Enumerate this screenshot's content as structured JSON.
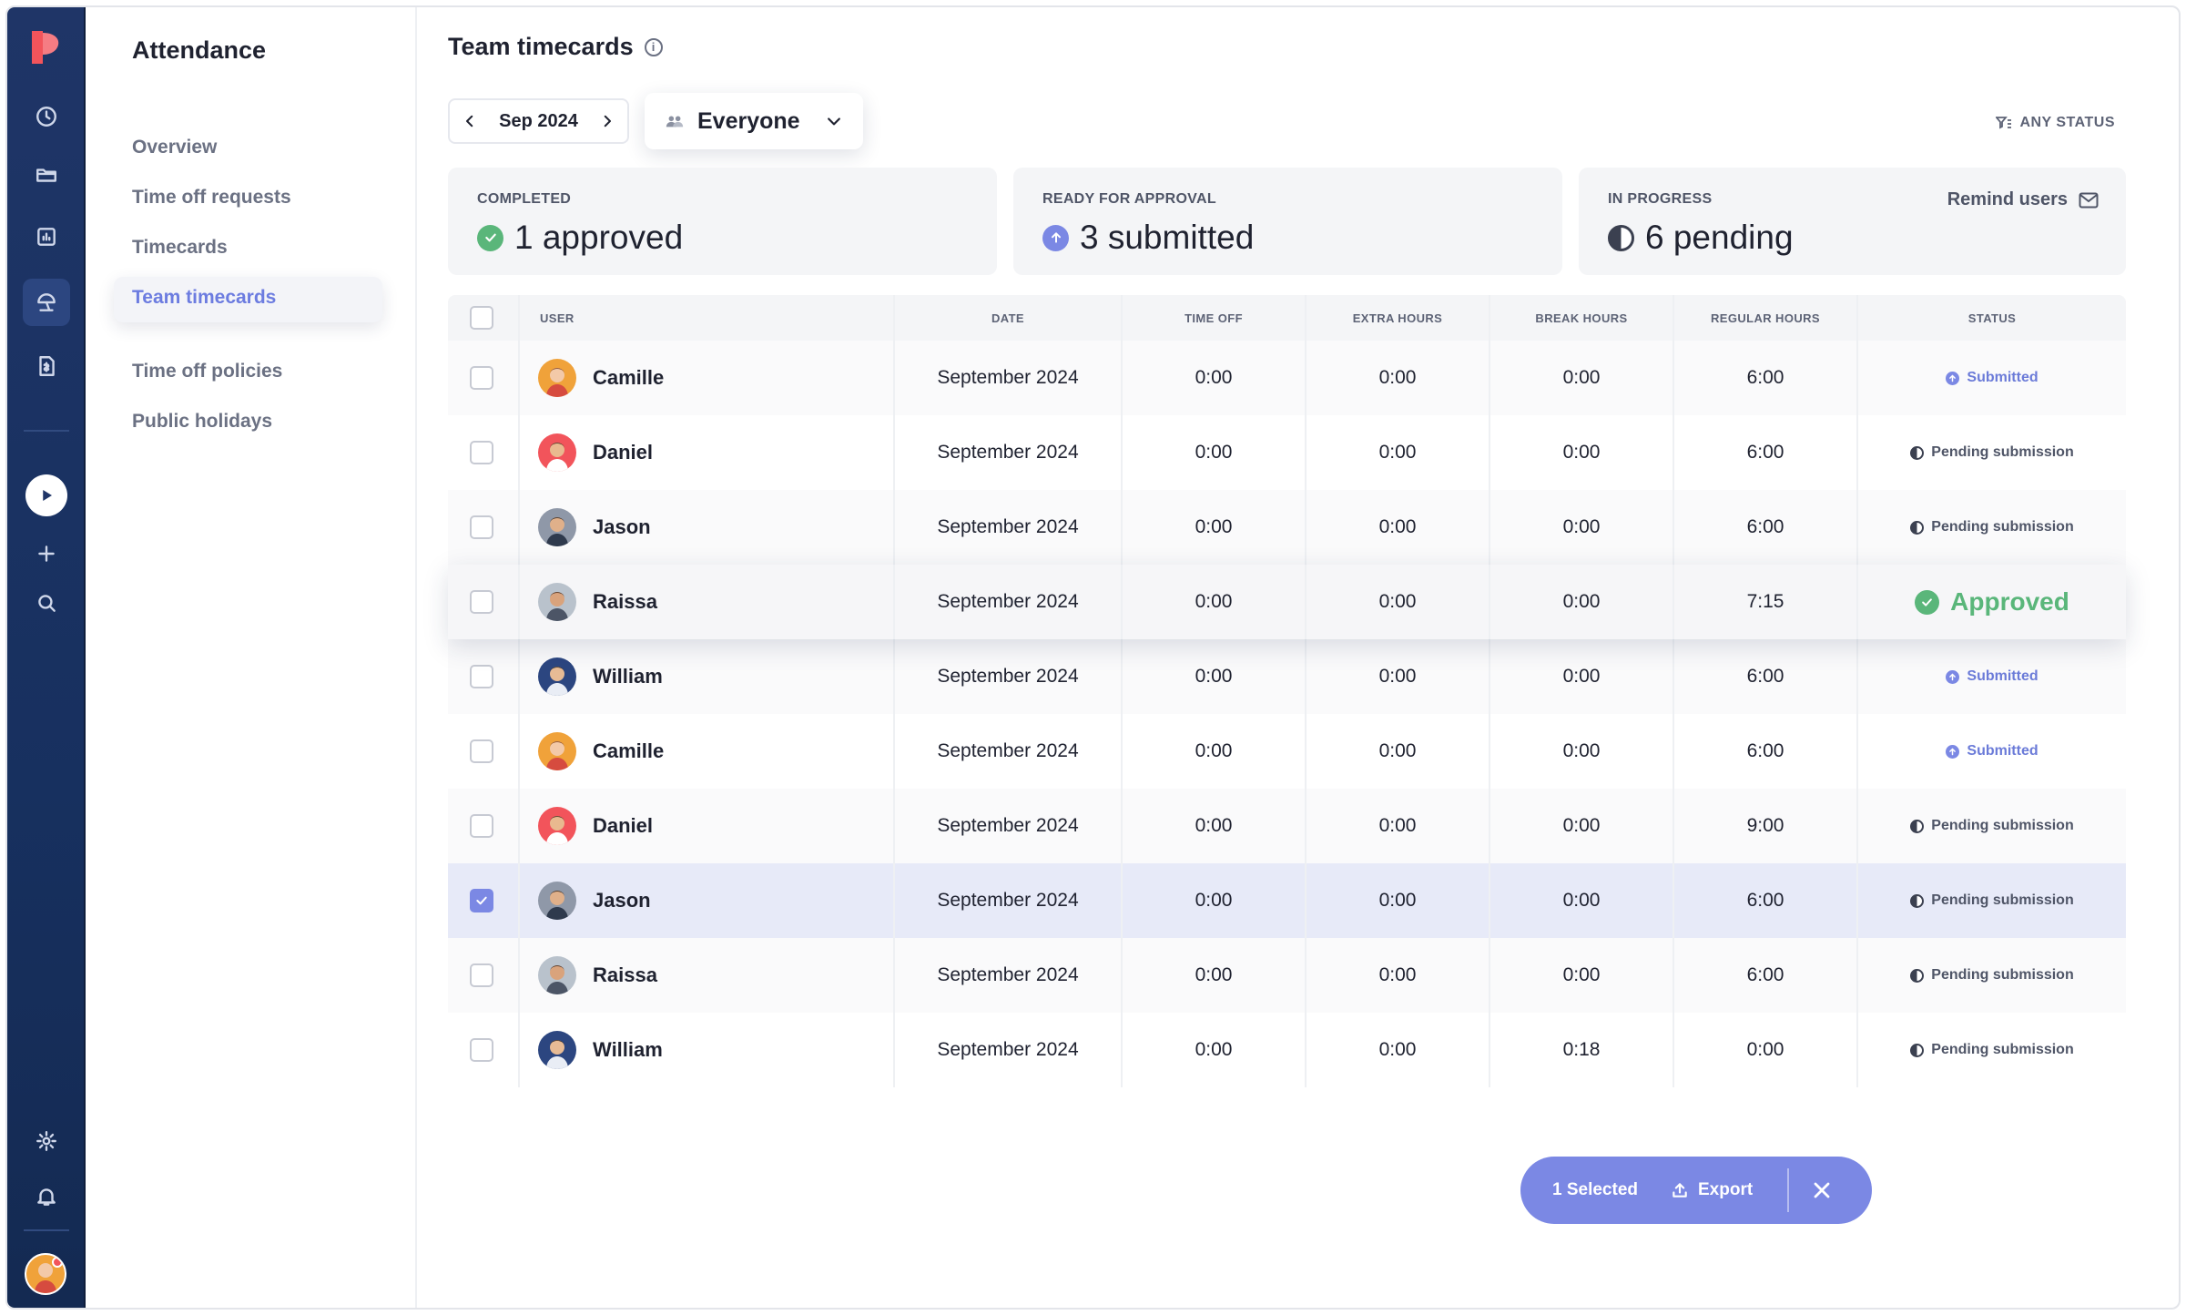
{
  "app": {
    "section_title": "Attendance",
    "nav": [
      {
        "label": "Overview"
      },
      {
        "label": "Time off requests"
      },
      {
        "label": "Timecards"
      },
      {
        "label": "Team timecards"
      },
      {
        "label": "Time off policies"
      },
      {
        "label": "Public holidays"
      }
    ],
    "rail_icons": [
      "clock-icon",
      "folder-icon",
      "chart-icon",
      "beach-umbrella-icon",
      "invoice-icon",
      "play-icon",
      "plus-icon",
      "search-icon",
      "gear-icon",
      "bell-icon"
    ]
  },
  "header": {
    "title": "Team timecards",
    "month": "Sep 2024",
    "group_filter": "Everyone",
    "status_filter": "ANY STATUS"
  },
  "summary": {
    "completed": {
      "caption": "COMPLETED",
      "value": "1 approved"
    },
    "ready": {
      "caption": "READY FOR APPROVAL",
      "value": "3 submitted"
    },
    "progress": {
      "caption": "IN PROGRESS",
      "value": "6 pending",
      "action": "Remind users"
    }
  },
  "table": {
    "columns": [
      "USER",
      "DATE",
      "TIME OFF",
      "EXTRA HOURS",
      "BREAK HOURS",
      "REGULAR HOURS",
      "STATUS"
    ],
    "rows": [
      {
        "user": "Camille",
        "date": "September 2024",
        "time_off": "0:00",
        "extra": "0:00",
        "break": "0:00",
        "regular": "6:00",
        "status": "Submitted",
        "checked": false
      },
      {
        "user": "Daniel",
        "date": "September 2024",
        "time_off": "0:00",
        "extra": "0:00",
        "break": "0:00",
        "regular": "6:00",
        "status": "Pending submission",
        "checked": false
      },
      {
        "user": "Jason",
        "date": "September 2024",
        "time_off": "0:00",
        "extra": "0:00",
        "break": "0:00",
        "regular": "6:00",
        "status": "Pending submission",
        "checked": false
      },
      {
        "user": "Raissa",
        "date": "September 2024",
        "time_off": "0:00",
        "extra": "0:00",
        "break": "0:00",
        "regular": "7:15",
        "status": "Approved",
        "checked": false
      },
      {
        "user": "William",
        "date": "September 2024",
        "time_off": "0:00",
        "extra": "0:00",
        "break": "0:00",
        "regular": "6:00",
        "status": "Submitted",
        "checked": false
      },
      {
        "user": "Camille",
        "date": "September 2024",
        "time_off": "0:00",
        "extra": "0:00",
        "break": "0:00",
        "regular": "6:00",
        "status": "Submitted",
        "checked": false
      },
      {
        "user": "Daniel",
        "date": "September 2024",
        "time_off": "0:00",
        "extra": "0:00",
        "break": "0:00",
        "regular": "9:00",
        "status": "Pending submission",
        "checked": false
      },
      {
        "user": "Jason",
        "date": "September 2024",
        "time_off": "0:00",
        "extra": "0:00",
        "break": "0:00",
        "regular": "6:00",
        "status": "Pending submission",
        "checked": true
      },
      {
        "user": "Raissa",
        "date": "September 2024",
        "time_off": "0:00",
        "extra": "0:00",
        "break": "0:00",
        "regular": "6:00",
        "status": "Pending submission",
        "checked": false
      },
      {
        "user": "William",
        "date": "September 2024",
        "time_off": "0:00",
        "extra": "0:00",
        "break": "0:18",
        "regular": "0:00",
        "status": "Pending submission",
        "checked": false
      }
    ]
  },
  "action_bar": {
    "selected": "1 Selected",
    "export": "Export"
  },
  "colors": {
    "accent": "#7b88e4",
    "approved": "#5ab67a",
    "submitted": "#6b7bd8",
    "rail": "#1f3567"
  }
}
